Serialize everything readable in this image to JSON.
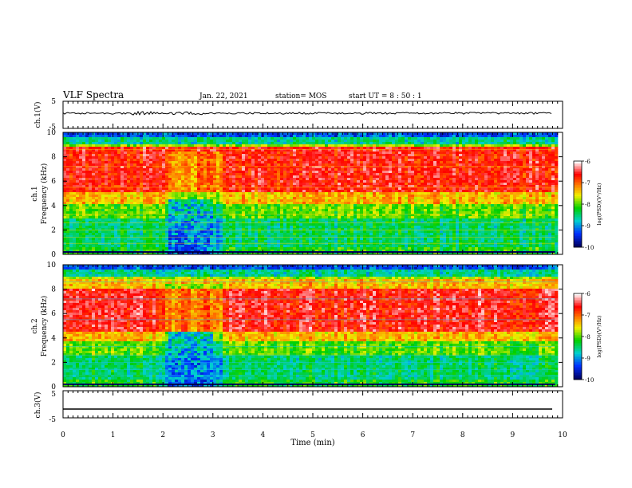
{
  "header": {
    "title": "VLF Spectra",
    "date": "Jan. 22, 2021",
    "station": "station= MOS",
    "start": "start  UT =   8 : 50 : 1"
  },
  "chart_data": [
    {
      "type": "line",
      "name": "ch1-waveform",
      "ylabel": "ch.1(V)",
      "ylim": [
        -5,
        5
      ],
      "yticks": [
        "5",
        "-5"
      ],
      "xlim": [
        0,
        10
      ]
    },
    {
      "type": "heatmap",
      "name": "ch1-spectrogram",
      "ylabel": "ch.1\nFrequency (kHz)",
      "xlim": [
        0,
        10
      ],
      "ylim": [
        0,
        10
      ],
      "yticks": [
        "0",
        "2",
        "4",
        "6",
        "8",
        "10"
      ],
      "colorbar": {
        "label": "log(PSD)(V²/Hz)",
        "range": [
          -10,
          -6
        ],
        "ticks": [
          "-6",
          "-7",
          "-8",
          "-9",
          "-10"
        ]
      },
      "data_end_min": 9.85,
      "feature": {
        "description_free": true,
        "burst_start_min": 2.1,
        "burst_end_min": 3.0,
        "burst_top_khz": 4.5
      }
    },
    {
      "type": "heatmap",
      "name": "ch2-spectrogram",
      "ylabel": "ch.2\nFrequency (kHz)",
      "xlim": [
        0,
        10
      ],
      "ylim": [
        0,
        10
      ],
      "yticks": [
        "0",
        "2",
        "4",
        "6",
        "8",
        "10"
      ],
      "colorbar": {
        "label": "log(PSD)(V²/Hz)",
        "range": [
          -10,
          -6
        ],
        "ticks": [
          "-6",
          "-7",
          "-8",
          "-9",
          "-10"
        ]
      },
      "data_end_min": 9.85,
      "feature": {
        "burst_start_min": 2.1,
        "burst_end_min": 3.0,
        "burst_top_khz": 4.5
      }
    },
    {
      "type": "line",
      "name": "ch3-waveform",
      "ylabel": "ch.3(V)",
      "ylim": [
        -5,
        5
      ],
      "yticks": [
        "5",
        "-5"
      ],
      "xlim": [
        0,
        10
      ]
    }
  ],
  "xaxis": {
    "label": "Time (min)",
    "ticks": [
      "0",
      "1",
      "2",
      "3",
      "4",
      "5",
      "6",
      "7",
      "8",
      "9",
      "10"
    ]
  },
  "colors": {
    "c_low": "#000060",
    "c_blue": "#0030ff",
    "c_cyan": "#00d0d0",
    "c_green": "#00d000",
    "c_yellow": "#f0f000",
    "c_orange": "#ff8000",
    "c_red": "#ff0000",
    "c_white": "#ffffff"
  }
}
